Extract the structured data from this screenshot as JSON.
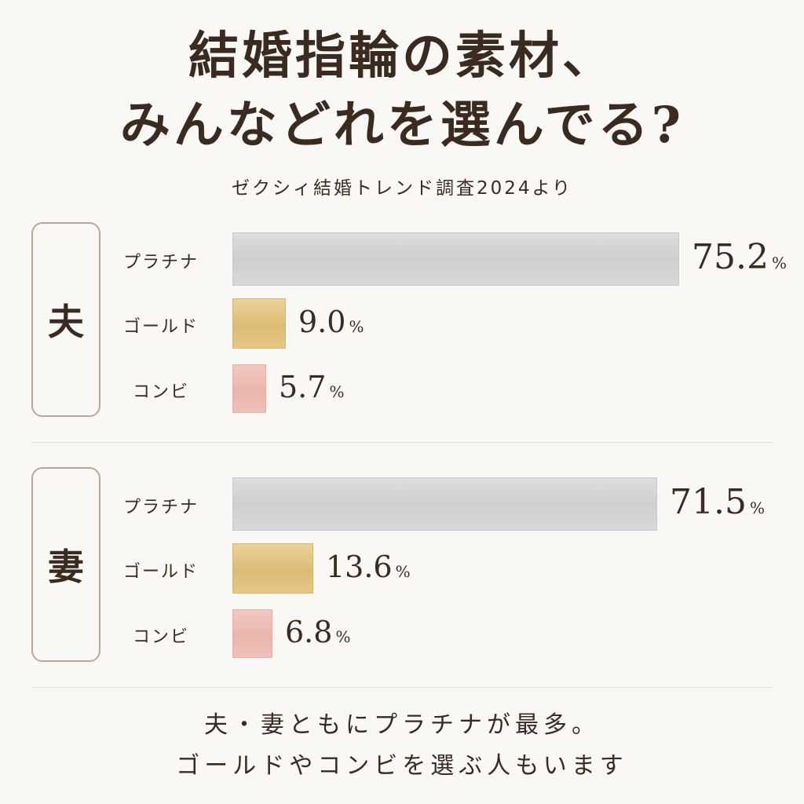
{
  "title": {
    "line1": "結婚指輪の素材、",
    "line2": "みんなどれを選んでる?"
  },
  "subtitle": "ゼクシィ結婚トレンド調査2024より",
  "footer": {
    "line1": "夫・妻ともにプラチナが最多。",
    "line2": "ゴールドやコンビを選ぶ人もいます"
  },
  "colors": {
    "platinum": "#d4d4d6",
    "gold": "#e2c482",
    "combi": "#ecbcb5",
    "text": "#3b2a20"
  },
  "chart_data": [
    {
      "type": "bar",
      "group": "夫",
      "categories": [
        "プラチナ",
        "ゴールド",
        "コンビ"
      ],
      "values": [
        75.2,
        9.0,
        5.7
      ],
      "value_labels": [
        "75.2",
        "9.0",
        "5.7"
      ],
      "unit": "%"
    },
    {
      "type": "bar",
      "group": "妻",
      "categories": [
        "プラチナ",
        "ゴールド",
        "コンビ"
      ],
      "values": [
        71.5,
        13.6,
        6.8
      ],
      "value_labels": [
        "71.5",
        "13.6",
        "6.8"
      ],
      "unit": "%"
    }
  ]
}
